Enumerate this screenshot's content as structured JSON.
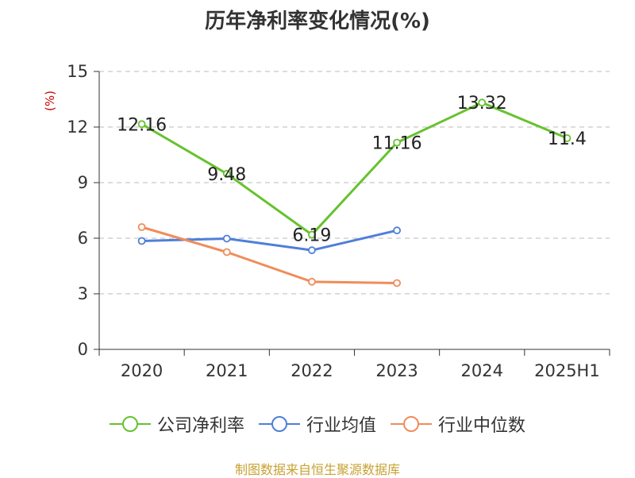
{
  "title": "历年净利率变化情况(%)",
  "source": "制图数据来自恒生聚源数据库",
  "colors": {
    "company": "#66c22e",
    "industry_avg": "#4f7fd8",
    "industry_median": "#f08c5a",
    "unit_label": "#cc0000",
    "source": "#c8a233"
  },
  "chart_data": {
    "type": "line",
    "title": "历年净利率变化情况(%)",
    "ylabel": "(%)",
    "xlabel": "",
    "categories": [
      "2020",
      "2021",
      "2022",
      "2023",
      "2024",
      "2025H1"
    ],
    "ylim": [
      0,
      15
    ],
    "yticks": [
      0,
      3,
      6,
      9,
      12,
      15
    ],
    "grid": true,
    "legend_position": "bottom",
    "series": [
      {
        "name": "公司净利率",
        "key": "company",
        "values": [
          12.16,
          9.48,
          6.19,
          11.16,
          13.32,
          11.4
        ],
        "labels": [
          "12.16",
          "9.48",
          "6.19",
          "11.16",
          "13.32",
          "11.4"
        ]
      },
      {
        "name": "行业均值",
        "key": "industry_avg",
        "values": [
          5.85,
          5.98,
          5.35,
          6.42,
          null,
          null
        ]
      },
      {
        "name": "行业中位数",
        "key": "industry_median",
        "values": [
          6.6,
          5.25,
          3.65,
          3.58,
          null,
          null
        ]
      }
    ]
  }
}
